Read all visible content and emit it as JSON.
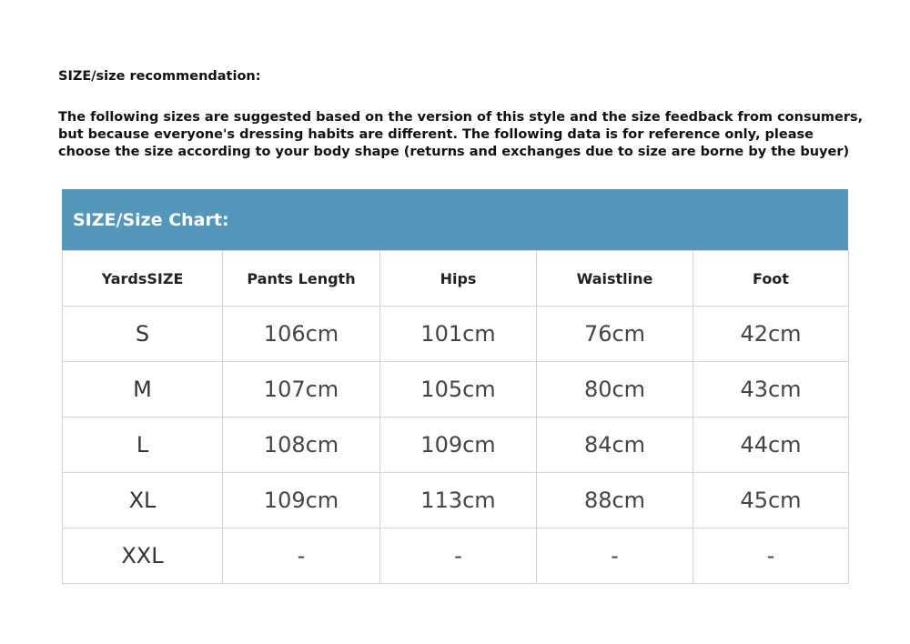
{
  "title": "SIZE/size recommendation:",
  "intro_lines": [
    "The following sizes are suggested based on the version of this style and the size feedback from consumers,",
    "but because everyone's dressing habits are different. The following data is for reference only, please",
    "choose the size according to your body shape (returns and exchanges due to size are borne by the buyer)"
  ],
  "table": {
    "banner": "SIZE/Size Chart:",
    "banner_color": "#5596bb",
    "headers": [
      "YardsSIZE",
      "Pants Length",
      "Hips",
      "Waistline",
      "Foot"
    ],
    "rows": [
      [
        "S",
        "106cm",
        "101cm",
        "76cm",
        "42cm"
      ],
      [
        "M",
        "107cm",
        "105cm",
        "80cm",
        "43cm"
      ],
      [
        "L",
        "108cm",
        "109cm",
        "84cm",
        "44cm"
      ],
      [
        "XL",
        "109cm",
        "113cm",
        "88cm",
        "45cm"
      ],
      [
        "XXL",
        "-",
        "-",
        "-",
        "-"
      ]
    ]
  }
}
